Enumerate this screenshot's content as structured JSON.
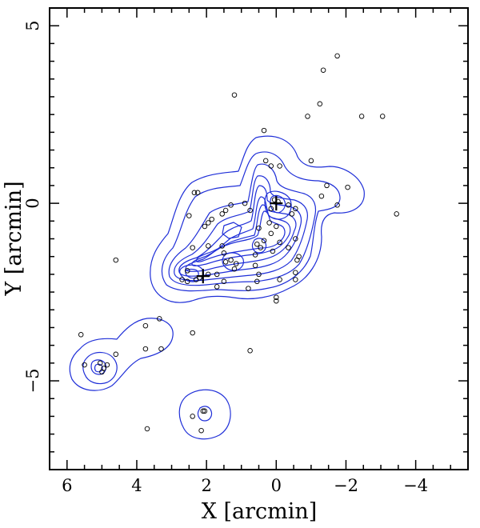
{
  "chart_data": {
    "type": "scatter",
    "xlabel": "X [arcmin]",
    "ylabel": "Y [arcmin]",
    "xlim": [
      6.5,
      -5.5
    ],
    "ylim": [
      -7.5,
      5.5
    ],
    "x_inverted": true,
    "x_ticks": [
      6,
      4,
      2,
      0,
      -2,
      -4
    ],
    "x_tick_labels": [
      "6",
      "4",
      "2",
      "0",
      "−2",
      "−4"
    ],
    "y_ticks": [
      5,
      0,
      -5
    ],
    "y_tick_labels": [
      "5",
      "0",
      "−5"
    ],
    "grid": false,
    "colors": {
      "contours": "#1f2fd8",
      "points": "#000000",
      "frame": "#000000"
    },
    "markers": [
      {
        "name": "cross",
        "x": 0.0,
        "y": 0.0
      },
      {
        "name": "cross",
        "x": 2.1,
        "y": -2.05
      }
    ],
    "points": [
      [
        -1.75,
        4.15
      ],
      [
        -1.35,
        3.75
      ],
      [
        1.2,
        3.05
      ],
      [
        -1.25,
        2.8
      ],
      [
        -0.9,
        2.45
      ],
      [
        -2.45,
        2.45
      ],
      [
        -3.05,
        2.45
      ],
      [
        0.35,
        2.05
      ],
      [
        0.3,
        1.2
      ],
      [
        0.15,
        1.05
      ],
      [
        -0.1,
        1.05
      ],
      [
        -1.0,
        1.2
      ],
      [
        -1.45,
        0.5
      ],
      [
        -1.3,
        0.2
      ],
      [
        -2.05,
        0.45
      ],
      [
        -1.75,
        -0.05
      ],
      [
        -3.45,
        -0.3
      ],
      [
        0.05,
        0.1
      ],
      [
        -0.05,
        0.05
      ],
      [
        0.15,
        -0.15
      ],
      [
        -0.35,
        -0.05
      ],
      [
        -0.45,
        -0.3
      ],
      [
        -0.55,
        -0.15
      ],
      [
        0.2,
        -0.55
      ],
      [
        0.5,
        -0.7
      ],
      [
        0.0,
        -0.65
      ],
      [
        0.15,
        -0.85
      ],
      [
        0.35,
        -1.05
      ],
      [
        -0.1,
        -1.1
      ],
      [
        0.45,
        -1.25
      ],
      [
        0.55,
        -1.15
      ],
      [
        -0.55,
        -1.0
      ],
      [
        -0.35,
        -1.25
      ],
      [
        0.1,
        -1.35
      ],
      [
        0.6,
        -1.45
      ],
      [
        0.6,
        -1.75
      ],
      [
        -0.65,
        -1.5
      ],
      [
        -0.6,
        -1.6
      ],
      [
        0.9,
        0.0
      ],
      [
        0.75,
        -0.2
      ],
      [
        1.3,
        -0.05
      ],
      [
        1.45,
        -0.2
      ],
      [
        1.55,
        -0.3
      ],
      [
        1.85,
        -0.45
      ],
      [
        1.95,
        -0.55
      ],
      [
        2.05,
        -0.65
      ],
      [
        2.5,
        -0.35
      ],
      [
        2.35,
        0.3
      ],
      [
        2.25,
        0.3
      ],
      [
        1.95,
        -1.2
      ],
      [
        1.55,
        -1.2
      ],
      [
        1.5,
        -1.4
      ],
      [
        1.3,
        -1.6
      ],
      [
        1.45,
        -1.65
      ],
      [
        1.15,
        -1.7
      ],
      [
        1.2,
        -1.85
      ],
      [
        1.7,
        -2.0
      ],
      [
        1.95,
        -2.0
      ],
      [
        2.2,
        -2.1
      ],
      [
        2.3,
        -2.15
      ],
      [
        2.55,
        -2.2
      ],
      [
        2.7,
        -2.15
      ],
      [
        2.55,
        -1.9
      ],
      [
        2.4,
        -1.25
      ],
      [
        1.5,
        -2.2
      ],
      [
        1.7,
        -2.35
      ],
      [
        0.8,
        -2.4
      ],
      [
        0.5,
        -2.0
      ],
      [
        0.55,
        -2.2
      ],
      [
        -0.1,
        -2.15
      ],
      [
        -0.55,
        -1.95
      ],
      [
        -0.55,
        -2.15
      ],
      [
        0.0,
        -2.65
      ],
      [
        0.0,
        -2.75
      ],
      [
        0.75,
        -4.15
      ],
      [
        2.4,
        -3.65
      ],
      [
        3.75,
        -3.45
      ],
      [
        3.35,
        -3.25
      ],
      [
        3.75,
        -4.1
      ],
      [
        3.3,
        -4.1
      ],
      [
        4.6,
        -4.25
      ],
      [
        4.6,
        -1.6
      ],
      [
        5.6,
        -3.7
      ],
      [
        5.5,
        -4.55
      ],
      [
        5.05,
        -4.5
      ],
      [
        4.95,
        -4.65
      ],
      [
        4.85,
        -4.55
      ],
      [
        5.0,
        -4.75
      ],
      [
        2.4,
        -6.0
      ],
      [
        2.1,
        -5.85
      ],
      [
        2.05,
        -5.85
      ],
      [
        2.15,
        -6.4
      ],
      [
        3.7,
        -6.35
      ]
    ]
  }
}
